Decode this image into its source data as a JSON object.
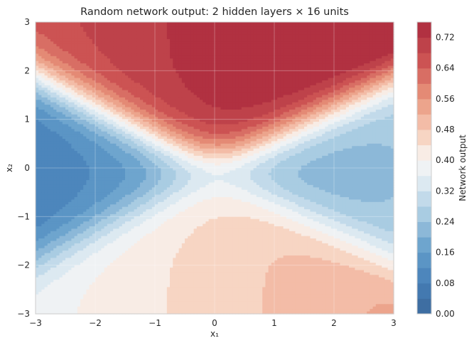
{
  "chart_data": {
    "type": "heatmap",
    "title": "Random network output: 2 hidden layers × 16 units",
    "xlabel": "x₁",
    "ylabel": "x₂",
    "xlim": [
      -3,
      3
    ],
    "ylim": [
      -3,
      3
    ],
    "x_ticks": [
      "−3",
      "−2",
      "−1",
      "0",
      "1",
      "2",
      "3"
    ],
    "y_ticks": [
      "−3",
      "−2",
      "−1",
      "0",
      "1",
      "2",
      "3"
    ],
    "grid": true,
    "colorbar": {
      "label": "Network output",
      "min": 0.0,
      "max": 0.76,
      "levels": 19,
      "ticks": [
        "0.00",
        "0.08",
        "0.16",
        "0.24",
        "0.32",
        "0.40",
        "0.48",
        "0.56",
        "0.64",
        "0.72"
      ],
      "colormap": "RdBu_r"
    },
    "colors": {
      "low": "#3a6a9c",
      "mid": "#f7f7f7",
      "high": "#b0283c"
    }
  }
}
